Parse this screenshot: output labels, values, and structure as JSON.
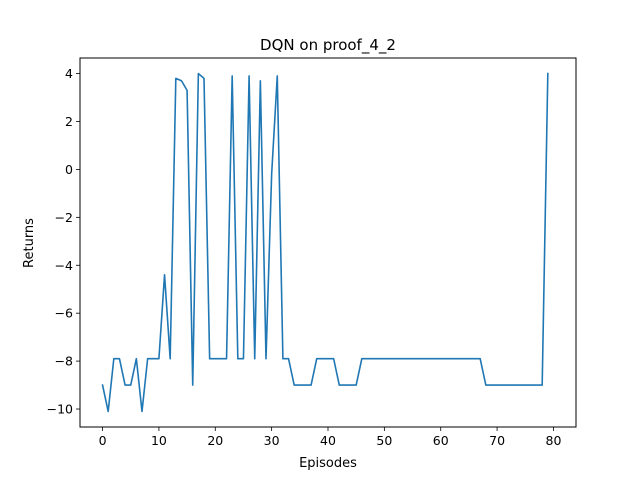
{
  "chart_data": {
    "type": "line",
    "title": "DQN on proof_4_2",
    "xlabel": "Episodes",
    "ylabel": "Returns",
    "xlim": [
      -4,
      84
    ],
    "ylim": [
      -10.75,
      4.65
    ],
    "xticks": [
      0,
      10,
      20,
      30,
      40,
      50,
      60,
      70,
      80
    ],
    "yticks": [
      4,
      2,
      0,
      -2,
      -4,
      -6,
      -8,
      -10
    ],
    "xtick_labels": [
      "0",
      "10",
      "20",
      "30",
      "40",
      "50",
      "60",
      "70",
      "80"
    ],
    "ytick_labels": [
      "4",
      "2",
      "0",
      "−2",
      "−4",
      "−6",
      "−8",
      "−10"
    ],
    "grid": false,
    "series": [
      {
        "color": "#1f77b4",
        "x": [
          0,
          1,
          2,
          3,
          4,
          5,
          6,
          7,
          8,
          9,
          10,
          11,
          12,
          13,
          14,
          15,
          16,
          17,
          18,
          19,
          20,
          21,
          22,
          23,
          24,
          25,
          26,
          27,
          28,
          29,
          30,
          31,
          32,
          33,
          34,
          35,
          36,
          37,
          38,
          39,
          40,
          41,
          42,
          43,
          44,
          45,
          46,
          47,
          48,
          49,
          50,
          51,
          52,
          53,
          54,
          55,
          56,
          57,
          58,
          59,
          60,
          61,
          62,
          63,
          64,
          65,
          66,
          67,
          68,
          69,
          70,
          71,
          72,
          73,
          74,
          75,
          76,
          77,
          78,
          79
        ],
        "y": [
          -9.0,
          -10.1,
          -7.9,
          -7.9,
          -9.0,
          -9.0,
          -7.9,
          -10.1,
          -7.9,
          -7.9,
          -7.9,
          -4.4,
          -7.9,
          3.8,
          3.7,
          3.3,
          -9.0,
          4.0,
          3.8,
          -7.9,
          -7.9,
          -7.9,
          -7.9,
          3.9,
          -7.9,
          -7.9,
          3.9,
          -7.9,
          3.7,
          -7.9,
          -0.2,
          3.9,
          -7.9,
          -7.9,
          -9.0,
          -9.0,
          -9.0,
          -9.0,
          -7.9,
          -7.9,
          -7.9,
          -7.9,
          -9.0,
          -9.0,
          -9.0,
          -9.0,
          -7.9,
          -7.9,
          -7.9,
          -7.9,
          -7.9,
          -7.9,
          -7.9,
          -7.9,
          -7.9,
          -7.9,
          -7.9,
          -7.9,
          -7.9,
          -7.9,
          -7.9,
          -7.9,
          -7.9,
          -7.9,
          -7.9,
          -7.9,
          -7.9,
          -7.9,
          -9.0,
          -9.0,
          -9.0,
          -9.0,
          -9.0,
          -9.0,
          -9.0,
          -9.0,
          -9.0,
          -9.0,
          -9.0,
          4.0
        ]
      }
    ]
  }
}
